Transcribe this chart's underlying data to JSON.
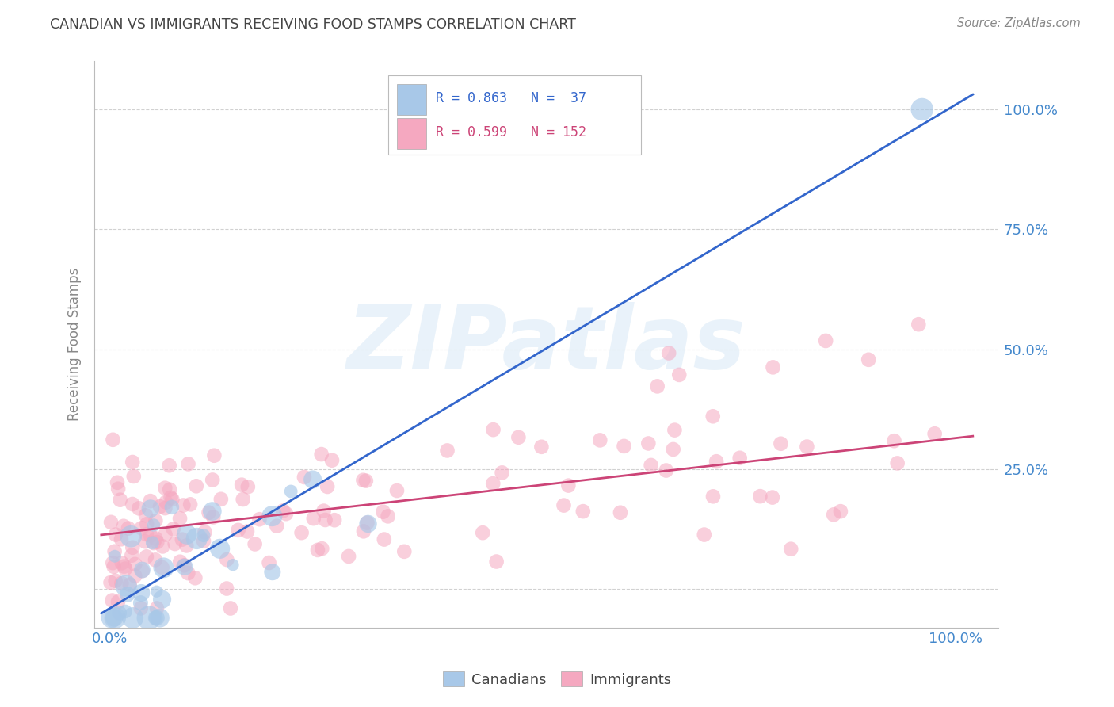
{
  "title": "CANADIAN VS IMMIGRANTS RECEIVING FOOD STAMPS CORRELATION CHART",
  "source": "Source: ZipAtlas.com",
  "ylabel": "Receiving Food Stamps",
  "watermark": "ZIPatlas",
  "canadian_color": "#A8C8E8",
  "canadian_line_color": "#3366CC",
  "immigrant_color": "#F5A8C0",
  "immigrant_line_color": "#CC4477",
  "title_color": "#444444",
  "tick_color": "#4488CC",
  "background_color": "#FFFFFF",
  "grid_color": "#CCCCCC",
  "can_slope": 1.05,
  "can_intercept": -0.04,
  "imm_slope": 0.2,
  "imm_intercept": 0.115
}
